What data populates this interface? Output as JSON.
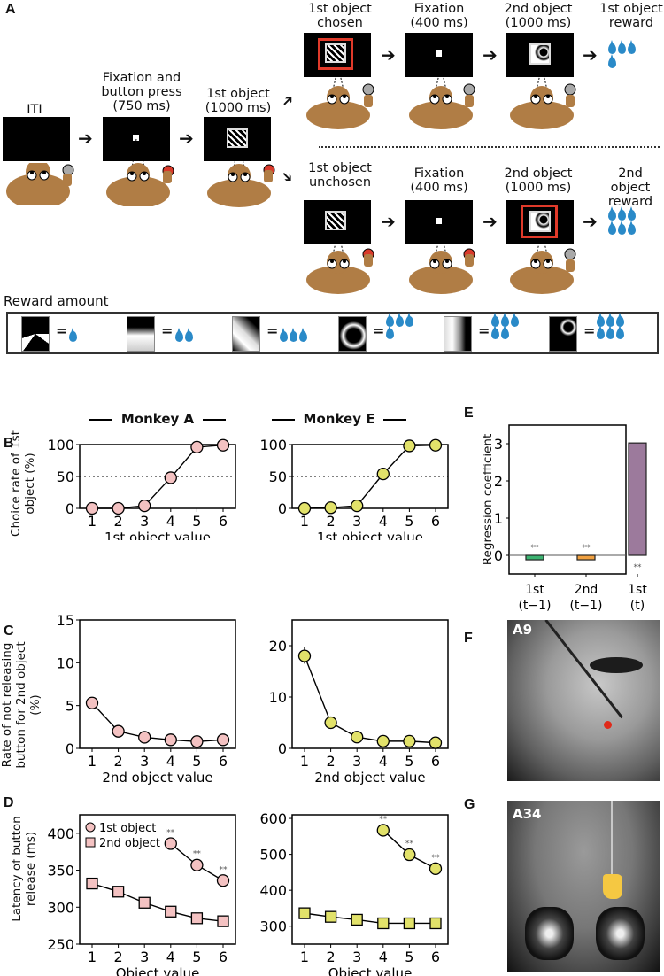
{
  "panel_a": {
    "letter": "A",
    "steps": [
      {
        "label": "ITI"
      },
      {
        "label": "Fixation and button press (750 ms)"
      },
      {
        "label": "1st object (1000 ms)"
      }
    ],
    "branch_top": {
      "steps": [
        {
          "label": "1st object chosen"
        },
        {
          "label": "Fixation (400 ms)"
        },
        {
          "label": "2nd object (1000 ms)"
        },
        {
          "label": "1st object reward"
        }
      ],
      "reward_drops": 4
    },
    "branch_bottom": {
      "steps": [
        {
          "label": "1st object unchosen"
        },
        {
          "label": "Fixation (400 ms)"
        },
        {
          "label": "2nd object (1000 ms)"
        },
        {
          "label": "2nd object reward"
        }
      ],
      "reward_drops": 6
    },
    "reward_amount": {
      "title": "Reward amount",
      "items": [
        {
          "drops": 1
        },
        {
          "drops": 2
        },
        {
          "drops": 3
        },
        {
          "drops": 4
        },
        {
          "drops": 5
        },
        {
          "drops": 6
        }
      ]
    },
    "colors": {
      "button_pressed": "#d93a2b",
      "button_released": "#a9a9a9",
      "monkey": "#b07d45",
      "drop": "#2a8ac8",
      "chosen_frame": "#e03a2a"
    }
  },
  "monkey_headers": {
    "a": "Monkey A",
    "e": "Monkey E"
  },
  "panel_letters": {
    "b": "B",
    "c": "C",
    "d": "D",
    "e": "E",
    "f": "F",
    "g": "G"
  },
  "chart_data": [
    {
      "id": "B-MonkeyA",
      "type": "line",
      "title": "Monkey A",
      "xlabel": "1st object value",
      "ylabel": "Choice rate of 1st object (%)",
      "x": [
        1,
        2,
        3,
        4,
        5,
        6
      ],
      "series": [
        {
          "name": "Choice rate",
          "values": [
            0,
            0,
            4,
            48,
            96,
            99
          ],
          "color": "#f4c2c2"
        }
      ],
      "ylim": [
        0,
        100
      ],
      "yticks": [
        0,
        50,
        100
      ],
      "reference_line": 50
    },
    {
      "id": "B-MonkeyE",
      "type": "line",
      "title": "Monkey E",
      "xlabel": "1st object value",
      "ylabel": "",
      "x": [
        1,
        2,
        3,
        4,
        5,
        6
      ],
      "series": [
        {
          "name": "Choice rate",
          "values": [
            0,
            1,
            4,
            54,
            98,
            99
          ],
          "color": "#e2e26a"
        }
      ],
      "ylim": [
        0,
        100
      ],
      "yticks": [
        0,
        50,
        100
      ],
      "reference_line": 50
    },
    {
      "id": "C-MonkeyA",
      "type": "line",
      "xlabel": "2nd object value",
      "ylabel": "Rate of not releasing button for 2nd object (%)",
      "x": [
        1,
        2,
        3,
        4,
        5,
        6
      ],
      "series": [
        {
          "name": "Not releasing rate",
          "values": [
            5.3,
            2.0,
            1.3,
            1.0,
            0.8,
            1.0
          ],
          "color": "#f4c2c2"
        }
      ],
      "ylim": [
        0,
        15
      ],
      "yticks": [
        0,
        5,
        10,
        15
      ]
    },
    {
      "id": "C-MonkeyE",
      "type": "line",
      "xlabel": "2nd object value",
      "ylabel": "",
      "x": [
        1,
        2,
        3,
        4,
        5,
        6
      ],
      "series": [
        {
          "name": "Not releasing rate",
          "values": [
            18,
            5,
            2.2,
            1.4,
            1.4,
            1.1
          ],
          "color": "#e2e26a"
        }
      ],
      "ylim": [
        0,
        25
      ],
      "yticks": [
        0,
        10,
        20
      ]
    },
    {
      "id": "D-MonkeyA",
      "type": "line",
      "xlabel": "Object value",
      "ylabel": "Latency of button release (ms)",
      "x": [
        1,
        2,
        3,
        4,
        5,
        6
      ],
      "series": [
        {
          "name": "1st object",
          "marker": "circle",
          "x": [
            4,
            5,
            6
          ],
          "values": [
            386,
            357,
            336
          ],
          "color": "#f4c2c2",
          "annotations": [
            "**",
            "**",
            "**"
          ]
        },
        {
          "name": "2nd object",
          "marker": "square",
          "x": [
            1,
            2,
            3,
            4,
            5,
            6
          ],
          "values": [
            332,
            321,
            306,
            294,
            285,
            281
          ],
          "color": "#f4c2c2"
        }
      ],
      "ylim": [
        250,
        425
      ],
      "yticks": [
        250,
        300,
        350,
        400
      ],
      "legend": [
        "1st object",
        "2nd object"
      ],
      "legend_position": "upper left"
    },
    {
      "id": "D-MonkeyE",
      "type": "line",
      "xlabel": "Object value",
      "ylabel": "",
      "x": [
        1,
        2,
        3,
        4,
        5,
        6
      ],
      "series": [
        {
          "name": "1st object",
          "marker": "circle",
          "x": [
            4,
            5,
            6
          ],
          "values": [
            567,
            499,
            460
          ],
          "color": "#e2e26a",
          "annotations": [
            "**",
            "**",
            "**"
          ]
        },
        {
          "name": "2nd object",
          "marker": "square",
          "x": [
            1,
            2,
            3,
            4,
            5,
            6
          ],
          "values": [
            336,
            326,
            318,
            308,
            308,
            308
          ],
          "color": "#e2e26a"
        }
      ],
      "ylim": [
        250,
        610
      ],
      "yticks": [
        300,
        400,
        500,
        600
      ]
    },
    {
      "id": "E",
      "type": "bar",
      "ylabel": "Regression coefficient",
      "categories": [
        "1st (t−1)",
        "2nd (t−1)",
        "1st (t)"
      ],
      "category_lines": [
        [
          "1st",
          "(t−1)"
        ],
        [
          "2nd",
          "(t−1)"
        ],
        [
          "1st",
          "(t)"
        ]
      ],
      "values": [
        -0.12,
        -0.12,
        3.02
      ],
      "colors": [
        "#3cb371",
        "#f0a040",
        "#9c7a9c"
      ],
      "annotations": [
        "**",
        "**",
        "**"
      ],
      "ylim": [
        -0.5,
        3.5
      ],
      "yticks": [
        0,
        1,
        2,
        3
      ]
    }
  ],
  "panel_f": {
    "label": "A9",
    "marker_color": "#e02a1a"
  },
  "panel_g": {
    "label": "A34",
    "region_color": "#f5c842"
  }
}
